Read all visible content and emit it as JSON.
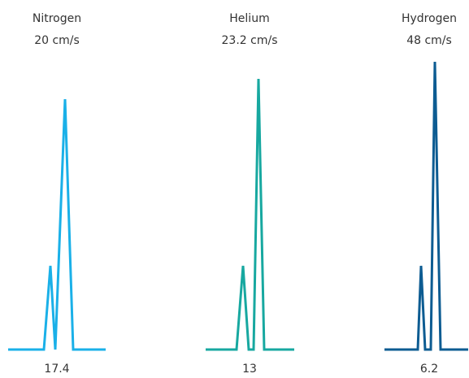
{
  "panels": [
    {
      "gas": "Nitrogen",
      "speed": "20 cm/s",
      "time": "17.4",
      "color": "#1ab0e8"
    },
    {
      "gas": "Helium",
      "speed": "23.2 cm/s",
      "time": "13",
      "color": "#17a8a0"
    },
    {
      "gas": "Hydrogen",
      "speed": "48 cm/s",
      "time": "6.2",
      "color": "#0d5c92"
    }
  ]
}
